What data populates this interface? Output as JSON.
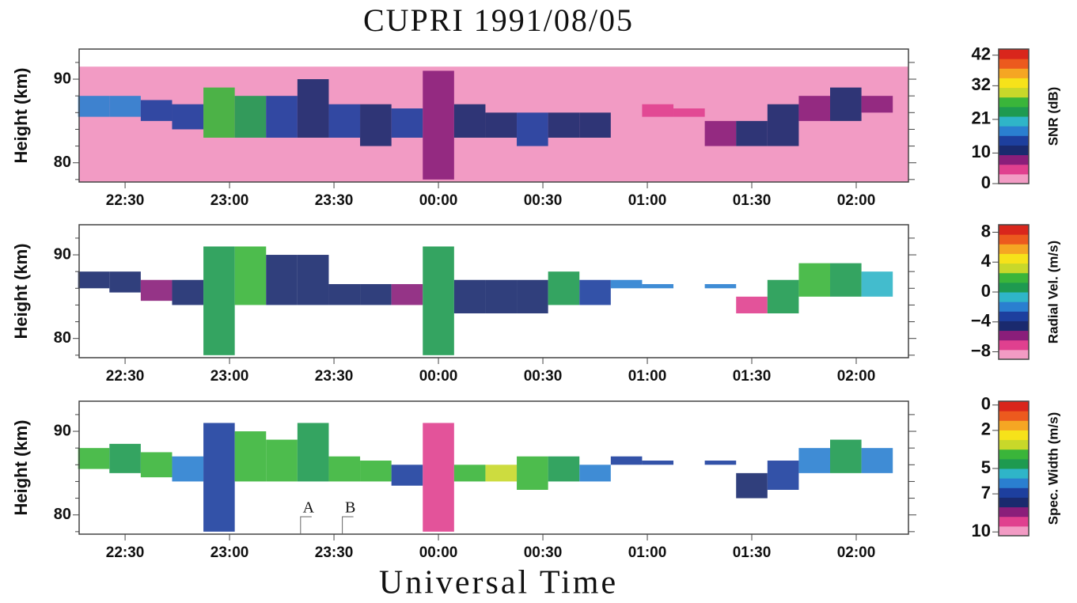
{
  "title": "CUPRI   1991/08/05",
  "xlabel": "Universal Time",
  "chart_data": [
    {
      "type": "rti",
      "label": "Height (km)",
      "colorbar_label": "SNR (dB)",
      "xlim": [
        22.28,
        26.25
      ],
      "ylim": [
        77.7,
        93.6
      ],
      "xticks": [
        {
          "value": 22.5,
          "label": "22:30"
        },
        {
          "value": 23,
          "label": "23:00"
        },
        {
          "value": 23.5,
          "label": "23:30"
        },
        {
          "value": 24,
          "label": "00:00"
        },
        {
          "value": 24.5,
          "label": "00:30"
        },
        {
          "value": 25,
          "label": "01:00"
        },
        {
          "value": 25.5,
          "label": "01:30"
        },
        {
          "value": 26,
          "label": "02:00"
        }
      ],
      "yticks": [
        80,
        90
      ],
      "yminorticks": [
        78,
        82,
        84,
        86,
        88,
        92
      ],
      "clim": [
        0,
        44
      ],
      "cticks": [
        0,
        10,
        21,
        32,
        42
      ],
      "colormap": [
        "#f29bc4",
        "#e0408f",
        "#8a1e7a",
        "#1a2a6e",
        "#1d3f9e",
        "#2a7fd0",
        "#2fb5c8",
        "#1e9a50",
        "#3ab53a",
        "#c8d82a",
        "#f6e21a",
        "#f5a623",
        "#ec5a1e",
        "#d9261c"
      ],
      "noise": {
        "value": 1,
        "top": 91.5
      },
      "x": [
        22.35,
        22.5,
        22.65,
        22.8,
        22.95,
        23.1,
        23.25,
        23.4,
        23.55,
        23.7,
        23.85,
        24.0,
        24.15,
        24.3,
        24.45,
        24.6,
        24.75,
        24.9,
        25.05,
        25.2,
        25.35,
        25.5,
        25.65,
        25.8,
        25.95,
        26.1
      ],
      "bottom": [
        85.5,
        85.5,
        85,
        84,
        83,
        83,
        83,
        83,
        83,
        82,
        83,
        78,
        83,
        83,
        82,
        83,
        83,
        null,
        85.5,
        85.5,
        82,
        82,
        82,
        85,
        85,
        86
      ],
      "top": [
        88,
        88,
        87.5,
        87,
        89,
        88,
        88,
        90,
        87,
        87,
        86.5,
        91,
        87,
        86,
        86,
        86,
        86,
        null,
        87,
        86.5,
        85,
        85,
        87,
        88,
        89,
        88
      ],
      "values": [
        18,
        16,
        14,
        14,
        28,
        22,
        15,
        12,
        14,
        12,
        14,
        8,
        10,
        10,
        14,
        12,
        10,
        null,
        6,
        6,
        8,
        10,
        12,
        8,
        10,
        8
      ]
    },
    {
      "type": "rti",
      "label": "Height (km)",
      "colorbar_label": "Radial Vel. (m/s)",
      "xlim": [
        22.28,
        26.25
      ],
      "ylim": [
        77.7,
        93.6
      ],
      "xticks": [
        {
          "value": 22.5,
          "label": "22:30"
        },
        {
          "value": 23,
          "label": "23:00"
        },
        {
          "value": 23.5,
          "label": "23:30"
        },
        {
          "value": 24,
          "label": "00:00"
        },
        {
          "value": 24.5,
          "label": "00:30"
        },
        {
          "value": 25,
          "label": "01:00"
        },
        {
          "value": 25.5,
          "label": "01:30"
        },
        {
          "value": 26,
          "label": "02:00"
        }
      ],
      "yticks": [
        80,
        90
      ],
      "yminorticks": [
        78,
        82,
        84,
        86,
        88,
        92
      ],
      "clim": [
        -9,
        9
      ],
      "cticks": [
        {
          "value": -8,
          "label": "−8"
        },
        {
          "value": -4,
          "label": "−4"
        },
        0,
        4,
        8
      ],
      "colormap": [
        "#f29bc4",
        "#e0408f",
        "#8a1e7a",
        "#1a2a6e",
        "#1d3f9e",
        "#2a7fd0",
        "#2fb5c8",
        "#1e9a50",
        "#3ab53a",
        "#c8d82a",
        "#f6e21a",
        "#f5a623",
        "#ec5a1e",
        "#d9261c"
      ],
      "x": [
        22.35,
        22.5,
        22.65,
        22.8,
        22.95,
        23.1,
        23.25,
        23.4,
        23.55,
        23.7,
        23.85,
        24.0,
        24.15,
        24.3,
        24.45,
        24.6,
        24.75,
        24.9,
        25.05,
        25.2,
        25.35,
        25.5,
        25.65,
        25.8,
        25.95,
        26.1
      ],
      "bottom": [
        86,
        85.5,
        84.5,
        84,
        78,
        84,
        84,
        84,
        84,
        84,
        84,
        78,
        83,
        83,
        83,
        84,
        84,
        86,
        86,
        null,
        86,
        83,
        83,
        85,
        85,
        85
      ],
      "top": [
        88,
        88,
        87,
        87,
        91,
        91,
        90,
        90,
        86.5,
        86.5,
        86.5,
        91,
        87,
        87,
        87,
        88,
        87,
        87,
        86.5,
        null,
        86.5,
        85,
        87,
        89,
        89,
        88
      ],
      "values": [
        -4,
        -5,
        -6,
        -5,
        1,
        2,
        -5,
        -5,
        -5,
        -5,
        -6,
        0,
        -5,
        -5,
        -4,
        1,
        -3,
        -2,
        -2,
        null,
        -2,
        -7,
        1,
        2,
        0,
        -1
      ]
    },
    {
      "type": "rti",
      "label": "Height (km)",
      "colorbar_label": "Spec. Width (m/s)",
      "xlim": [
        22.28,
        26.25
      ],
      "ylim": [
        77.7,
        93.6
      ],
      "xticks": [
        {
          "value": 22.5,
          "label": "22:30"
        },
        {
          "value": 23,
          "label": "23:00"
        },
        {
          "value": 23.5,
          "label": "23:30"
        },
        {
          "value": 24,
          "label": "00:00"
        },
        {
          "value": 24.5,
          "label": "00:30"
        },
        {
          "value": 25,
          "label": "01:00"
        },
        {
          "value": 25.5,
          "label": "01:30"
        },
        {
          "value": 26,
          "label": "02:00"
        }
      ],
      "yticks": [
        80,
        90
      ],
      "yminorticks": [
        78,
        82,
        84,
        86,
        88,
        92
      ],
      "clim": [
        10.3,
        -0.3
      ],
      "cticks": [
        0,
        2,
        5,
        7,
        10
      ],
      "colormap": [
        "#f29bc4",
        "#e0408f",
        "#8a1e7a",
        "#1a2a6e",
        "#1d3f9e",
        "#2a7fd0",
        "#2fb5c8",
        "#1e9a50",
        "#3ab53a",
        "#c8d82a",
        "#f6e21a",
        "#f5a623",
        "#ec5a1e",
        "#d9261c"
      ],
      "annotations": [
        {
          "text": "A",
          "x": 23.34
        },
        {
          "text": "B",
          "x": 23.54
        }
      ],
      "x": [
        22.35,
        22.5,
        22.65,
        22.8,
        22.95,
        23.1,
        23.25,
        23.4,
        23.55,
        23.7,
        23.85,
        24.0,
        24.15,
        24.3,
        24.45,
        24.6,
        24.75,
        24.9,
        25.05,
        25.2,
        25.35,
        25.5,
        25.65,
        25.8,
        25.95,
        26.1
      ],
      "bottom": [
        85.5,
        85,
        84.5,
        84,
        78,
        84,
        84,
        84,
        84,
        84,
        83.5,
        78,
        84,
        84,
        83,
        84,
        84,
        86,
        86,
        null,
        86,
        82,
        83,
        85,
        85,
        85
      ],
      "top": [
        88,
        88.5,
        87.5,
        87,
        91,
        90,
        89,
        91,
        87,
        86.5,
        86,
        91,
        86,
        86,
        87,
        87,
        86,
        87,
        86.5,
        null,
        86.5,
        85,
        86.5,
        88,
        89,
        88
      ],
      "values": [
        4,
        5,
        4,
        6,
        7,
        4,
        4,
        5,
        4,
        4,
        7,
        9,
        4,
        3,
        4,
        5,
        6,
        7,
        7,
        null,
        7,
        8,
        7,
        6,
        5,
        6
      ]
    }
  ]
}
